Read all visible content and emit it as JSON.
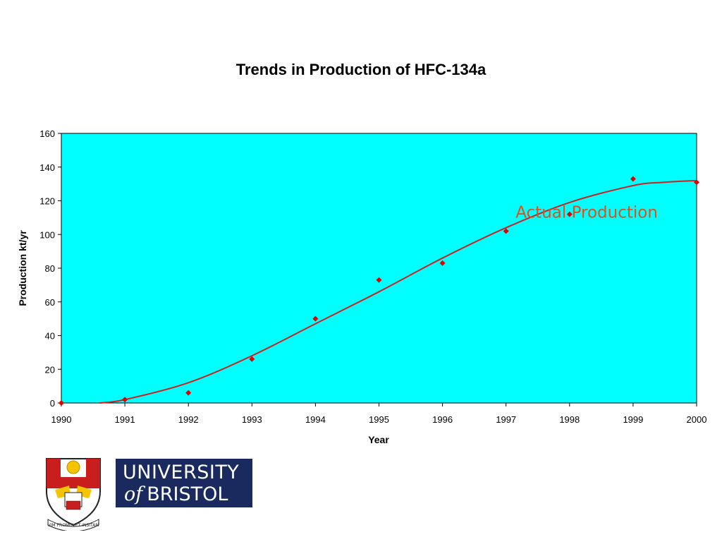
{
  "chart_data": {
    "type": "scatter",
    "title": "Trends in Production of HFC-134a",
    "xlabel": "Year",
    "ylabel": "Production kt/yr",
    "xlim": [
      1990,
      2000
    ],
    "ylim": [
      0,
      160
    ],
    "x_ticks": [
      "1990",
      "1991",
      "1992",
      "1993",
      "1994",
      "1995",
      "1996",
      "1997",
      "1998",
      "1999",
      "2000"
    ],
    "y_ticks": [
      "0",
      "20",
      "40",
      "60",
      "80",
      "100",
      "120",
      "140",
      "160"
    ],
    "plot_background": "#00ffff",
    "grid": false,
    "legend": "none",
    "series": [
      {
        "kind": "points",
        "marker": "diamond",
        "color": "#e00000",
        "x": [
          1990,
          1991,
          1992,
          1993,
          1994,
          1995,
          1996,
          1997,
          1998,
          1999,
          2000
        ],
        "y": [
          0,
          2,
          6,
          26,
          50,
          73,
          83,
          102,
          112,
          133,
          131
        ]
      },
      {
        "kind": "curve",
        "color": "#d02020",
        "x": [
          1990.6,
          1991,
          1992,
          1993,
          1994,
          1995,
          1996,
          1997,
          1998,
          1999,
          1999.5,
          2000
        ],
        "y": [
          0,
          2,
          12,
          28,
          47,
          66,
          86,
          104,
          119,
          129,
          131,
          132
        ]
      }
    ],
    "annotations": [
      {
        "text": "Actual Production",
        "color": "#e0501a",
        "x": 1997.15,
        "y": 110
      }
    ]
  },
  "branding": {
    "crest_motto": "VIM PROMOVET INSITAM",
    "wordmark_line1": "UNIVERSITY",
    "wordmark_of": "of",
    "wordmark_line2": "BRISTOL",
    "wordmark_bg": "#1b2a5e"
  }
}
